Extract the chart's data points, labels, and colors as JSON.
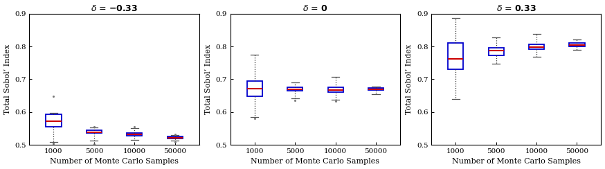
{
  "xlabel": "Number of Monte Carlo Samples",
  "ylabel": "Total Sobol’ Index",
  "xtick_labels": [
    "1000",
    "5000",
    "10000",
    "50000"
  ],
  "ylim": [
    0.5,
    0.9
  ],
  "yticks": [
    0.5,
    0.6,
    0.7,
    0.8,
    0.9
  ],
  "box_color": "#0000cc",
  "median_color": "#cc0000",
  "whisker_color": "#333333",
  "cap_color": "#555555",
  "flier_color": "#777777",
  "background": "#ffffff",
  "figsize": [
    8.74,
    2.44
  ],
  "dpi": 100,
  "panels": [
    {
      "delta": "-0.33",
      "boxes": [
        {
          "q1": 0.555,
          "median": 0.572,
          "q3": 0.593,
          "whislo": 0.508,
          "whishi": 0.598,
          "fliers_low": [
            0.501,
            0.504
          ],
          "fliers_high": [
            0.648
          ]
        },
        {
          "q1": 0.535,
          "median": 0.538,
          "q3": 0.545,
          "whislo": 0.512,
          "whishi": 0.553,
          "fliers_low": [
            0.503
          ],
          "fliers_high": [
            0.556
          ]
        },
        {
          "q1": 0.528,
          "median": 0.531,
          "q3": 0.537,
          "whislo": 0.515,
          "whishi": 0.551,
          "fliers_low": [],
          "fliers_high": [
            0.556
          ]
        },
        {
          "q1": 0.519,
          "median": 0.522,
          "q3": 0.525,
          "whislo": 0.513,
          "whishi": 0.53,
          "fliers_low": [
            0.509
          ],
          "fliers_high": [
            0.532
          ]
        }
      ]
    },
    {
      "delta": "0",
      "boxes": [
        {
          "q1": 0.648,
          "median": 0.671,
          "q3": 0.695,
          "whislo": 0.585,
          "whishi": 0.775,
          "fliers_low": [
            0.58
          ],
          "fliers_high": []
        },
        {
          "q1": 0.664,
          "median": 0.669,
          "q3": 0.676,
          "whislo": 0.641,
          "whishi": 0.69,
          "fliers_low": [
            0.636
          ],
          "fliers_high": []
        },
        {
          "q1": 0.661,
          "median": 0.668,
          "q3": 0.676,
          "whislo": 0.638,
          "whishi": 0.708,
          "fliers_low": [
            0.634
          ],
          "fliers_high": []
        },
        {
          "q1": 0.666,
          "median": 0.67,
          "q3": 0.673,
          "whislo": 0.654,
          "whishi": 0.678,
          "fliers_low": [],
          "fliers_high": []
        }
      ]
    },
    {
      "delta": "0.33",
      "boxes": [
        {
          "q1": 0.73,
          "median": 0.762,
          "q3": 0.81,
          "whislo": 0.64,
          "whishi": 0.887,
          "fliers_low": [],
          "fliers_high": []
        },
        {
          "q1": 0.772,
          "median": 0.787,
          "q3": 0.795,
          "whislo": 0.748,
          "whishi": 0.828,
          "fliers_low": [],
          "fliers_high": []
        },
        {
          "q1": 0.791,
          "median": 0.797,
          "q3": 0.806,
          "whislo": 0.768,
          "whishi": 0.838,
          "fliers_low": [],
          "fliers_high": []
        },
        {
          "q1": 0.8,
          "median": 0.804,
          "q3": 0.81,
          "whislo": 0.79,
          "whishi": 0.821,
          "fliers_low": [],
          "fliers_high": []
        }
      ]
    }
  ]
}
